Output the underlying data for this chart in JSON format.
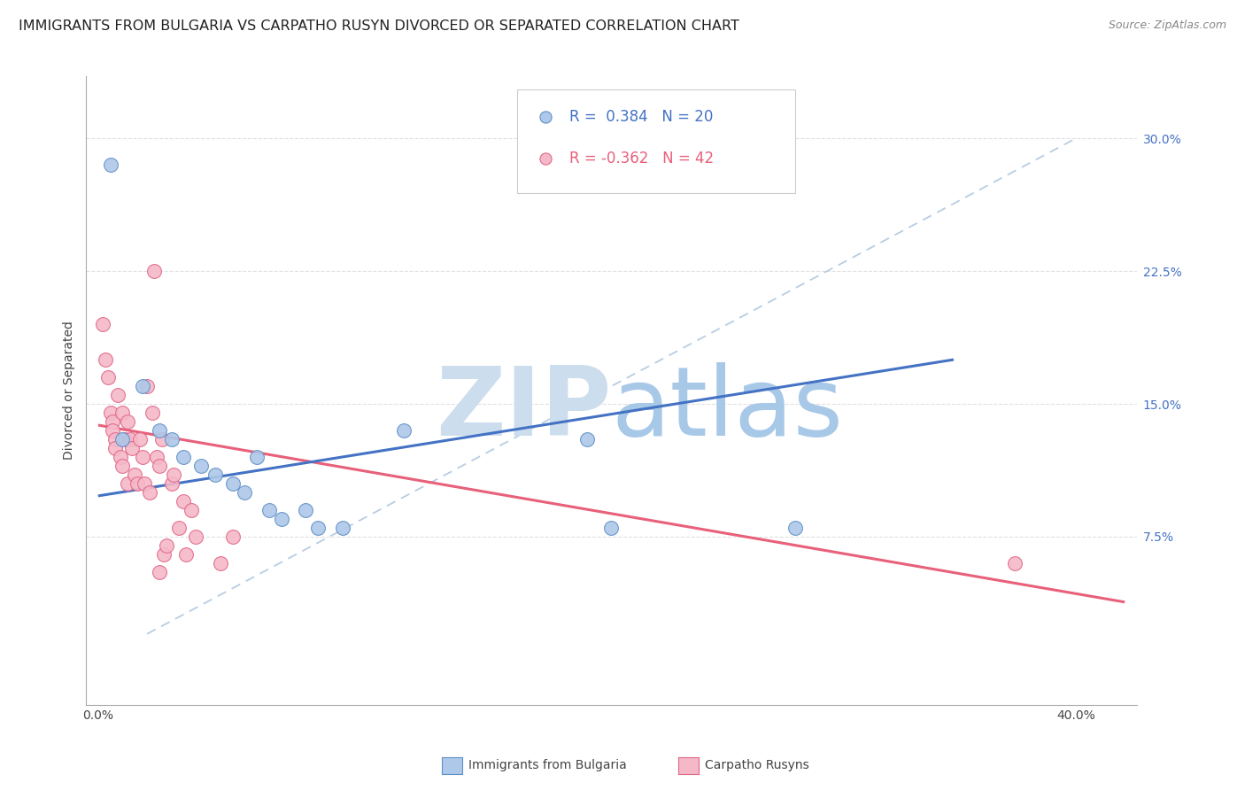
{
  "title": "IMMIGRANTS FROM BULGARIA VS CARPATHO RUSYN DIVORCED OR SEPARATED CORRELATION CHART",
  "source": "Source: ZipAtlas.com",
  "ylabel": "Divorced or Separated",
  "x_tick_pos": [
    0.0,
    0.05,
    0.1,
    0.15,
    0.2,
    0.25,
    0.3,
    0.35,
    0.4
  ],
  "x_tick_labels": [
    "0.0%",
    "",
    "",
    "",
    "",
    "",
    "",
    "",
    "40.0%"
  ],
  "y_tick_positions": [
    0.075,
    0.15,
    0.225,
    0.3
  ],
  "y_tick_labels": [
    "7.5%",
    "15.0%",
    "22.5%",
    "30.0%"
  ],
  "xlim": [
    -0.005,
    0.425
  ],
  "ylim": [
    -0.02,
    0.335
  ],
  "blue_R": 0.384,
  "blue_N": 20,
  "pink_R": -0.362,
  "pink_N": 42,
  "blue_scatter_x": [
    0.005,
    0.018,
    0.025,
    0.03,
    0.035,
    0.042,
    0.048,
    0.055,
    0.06,
    0.065,
    0.07,
    0.075,
    0.085,
    0.09,
    0.1,
    0.125,
    0.2,
    0.21,
    0.285,
    0.01
  ],
  "blue_scatter_y": [
    0.285,
    0.16,
    0.135,
    0.13,
    0.12,
    0.115,
    0.11,
    0.105,
    0.1,
    0.12,
    0.09,
    0.085,
    0.09,
    0.08,
    0.08,
    0.135,
    0.13,
    0.08,
    0.08,
    0.13
  ],
  "pink_scatter_x": [
    0.002,
    0.003,
    0.004,
    0.005,
    0.006,
    0.006,
    0.007,
    0.007,
    0.008,
    0.009,
    0.01,
    0.01,
    0.011,
    0.012,
    0.012,
    0.013,
    0.014,
    0.015,
    0.016,
    0.017,
    0.018,
    0.019,
    0.02,
    0.021,
    0.022,
    0.023,
    0.024,
    0.025,
    0.026,
    0.027,
    0.028,
    0.03,
    0.031,
    0.033,
    0.035,
    0.036,
    0.038,
    0.04,
    0.05,
    0.055,
    0.375,
    0.025
  ],
  "pink_scatter_y": [
    0.195,
    0.175,
    0.165,
    0.145,
    0.14,
    0.135,
    0.13,
    0.125,
    0.155,
    0.12,
    0.145,
    0.115,
    0.13,
    0.14,
    0.105,
    0.13,
    0.125,
    0.11,
    0.105,
    0.13,
    0.12,
    0.105,
    0.16,
    0.1,
    0.145,
    0.225,
    0.12,
    0.115,
    0.13,
    0.065,
    0.07,
    0.105,
    0.11,
    0.08,
    0.095,
    0.065,
    0.09,
    0.075,
    0.06,
    0.075,
    0.06,
    0.055
  ],
  "blue_line_x": [
    0.0,
    0.35
  ],
  "blue_line_y": [
    0.098,
    0.175
  ],
  "pink_line_x": [
    0.0,
    0.42
  ],
  "pink_line_y": [
    0.138,
    0.038
  ],
  "diag_line_x": [
    0.02,
    0.4
  ],
  "diag_line_y": [
    0.02,
    0.3
  ],
  "blue_color": "#adc8e8",
  "blue_edge_color": "#6090c8",
  "blue_line_color": "#4472c4",
  "pink_color": "#f5b8c8",
  "pink_edge_color": "#e06888",
  "pink_line_color": "#e8607a",
  "diag_color": "#b0c8e0",
  "background_color": "#ffffff",
  "grid_color": "#e0e0e0",
  "title_fontsize": 11.5,
  "axis_label_fontsize": 10,
  "tick_fontsize": 10,
  "legend_fontsize": 12,
  "watermark_ZIP_color": "#ccdded",
  "watermark_atlas_color": "#a8c8e8"
}
